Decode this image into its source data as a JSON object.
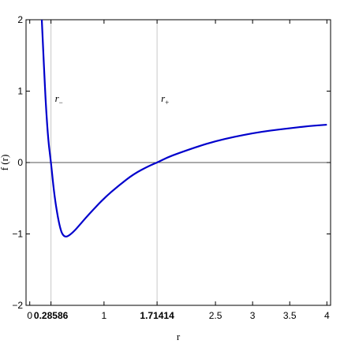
{
  "chart_data": {
    "type": "line",
    "title": "",
    "xlabel": "r",
    "ylabel": "f (r)",
    "xlim": [
      -0.05,
      4.05
    ],
    "ylim": [
      -2,
      2
    ],
    "x_ticks": [
      {
        "value": 0,
        "label": "0",
        "bold": false
      },
      {
        "value": 0.28586,
        "label": "0.28586",
        "bold": true
      },
      {
        "value": 1,
        "label": "1",
        "bold": false
      },
      {
        "value": 1.71414,
        "label": "1.71414",
        "bold": true
      },
      {
        "value": 2.5,
        "label": "2.5",
        "bold": false
      },
      {
        "value": 3,
        "label": "3",
        "bold": false
      },
      {
        "value": 3.5,
        "label": "3.5",
        "bold": false
      },
      {
        "value": 4,
        "label": "4",
        "bold": false
      }
    ],
    "y_ticks": [
      {
        "value": -2,
        "label": "−2"
      },
      {
        "value": -1,
        "label": "−1"
      },
      {
        "value": 0,
        "label": "0"
      },
      {
        "value": 1,
        "label": "1"
      },
      {
        "value": 2,
        "label": "2"
      }
    ],
    "series": [
      {
        "color": "#0000cc",
        "x": [
          0.16,
          0.18,
          0.2,
          0.22,
          0.25,
          0.28586,
          0.33,
          0.38,
          0.42,
          0.45,
          0.48,
          0.52,
          0.6,
          0.7,
          0.8,
          1.0,
          1.2,
          1.4,
          1.6,
          1.71414,
          1.85,
          2.0,
          2.25,
          2.5,
          2.75,
          3.0,
          3.25,
          3.5,
          3.75,
          4.0
        ],
        "y": [
          2.05,
          1.6,
          1.15,
          0.75,
          0.3,
          0.0,
          -0.45,
          -0.78,
          -0.96,
          -1.02,
          -1.04,
          -1.03,
          -0.96,
          -0.84,
          -0.72,
          -0.5,
          -0.32,
          -0.16,
          -0.05,
          0.0,
          0.07,
          0.13,
          0.22,
          0.3,
          0.36,
          0.41,
          0.45,
          0.48,
          0.51,
          0.53
        ]
      }
    ],
    "vertical_reference_lines": [
      0.28586,
      1.71414
    ],
    "horizontal_reference_lines": [
      0
    ],
    "annotations": [
      {
        "text": "r",
        "subscript": "−",
        "x": 0.28586,
        "y": 0.85
      },
      {
        "text": "r",
        "subscript": "+",
        "x": 1.71414,
        "y": 0.85
      }
    ],
    "grid": false
  }
}
